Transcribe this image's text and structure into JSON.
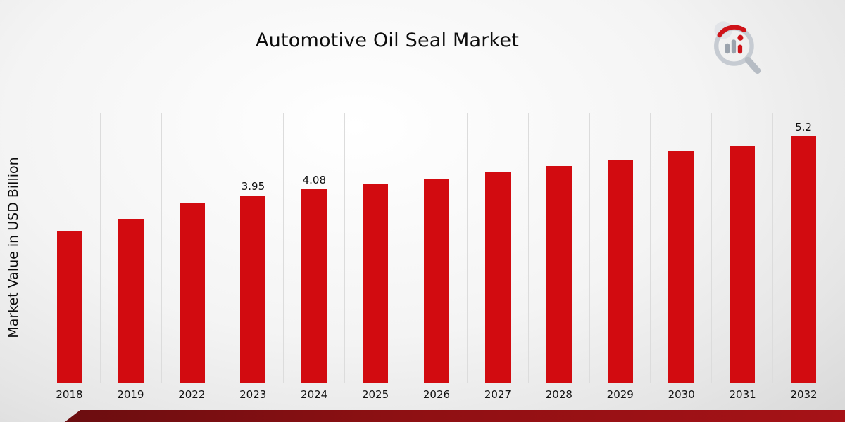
{
  "page": {
    "title": "Automotive Oil Seal Market"
  },
  "colors": {
    "bar_red": "#d20b10",
    "accent_red": "#cf1319",
    "ribbon_dark": "#6b0d10",
    "ribbon_light": "#a61217",
    "gridline": "#dcdcdc"
  },
  "chart_data": {
    "type": "bar",
    "title": "Automotive Oil Seal Market",
    "xlabel": "",
    "ylabel": "Market Value in USD Billion",
    "ylim": [
      0,
      5.7
    ],
    "grid": "vertical-only",
    "legend": "none",
    "bar_color": "#d20b10",
    "categories": [
      "2018",
      "2019",
      "2022",
      "2023",
      "2024",
      "2025",
      "2026",
      "2027",
      "2028",
      "2029",
      "2030",
      "2031",
      "2032"
    ],
    "values": [
      3.2,
      3.45,
      3.8,
      3.95,
      4.08,
      4.2,
      4.3,
      4.45,
      4.57,
      4.7,
      4.88,
      5.0,
      5.2
    ],
    "labels": [
      "",
      "",
      "",
      "3.95",
      "4.08",
      "",
      "",
      "",
      "",
      "",
      "",
      "",
      "5.2"
    ]
  }
}
